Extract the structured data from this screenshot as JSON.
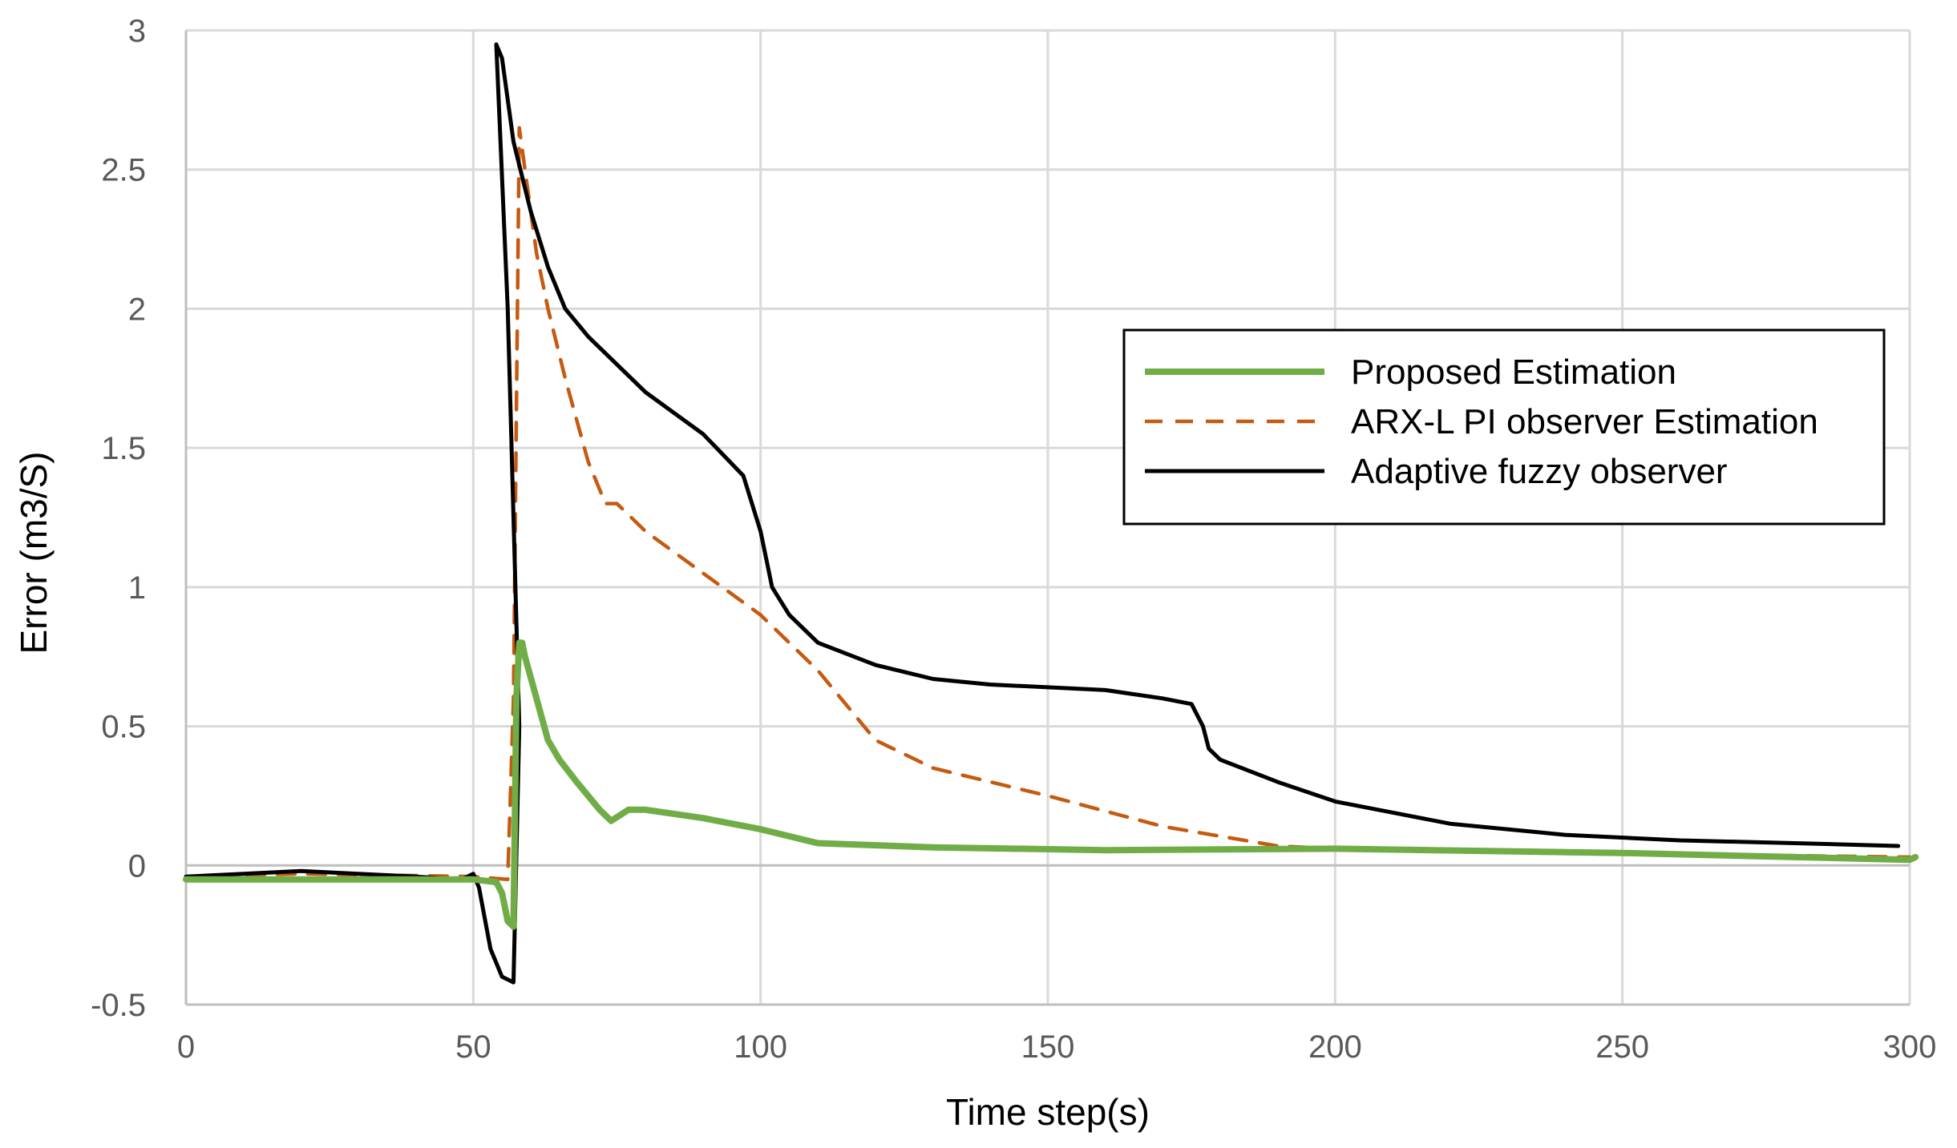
{
  "chart_data": {
    "type": "line",
    "title": "",
    "xlabel": "Time step(s)",
    "ylabel": "Error (m3/S)",
    "xlim": [
      0,
      300
    ],
    "ylim": [
      -0.5,
      3
    ],
    "xticks": [
      "0",
      "50",
      "100",
      "150",
      "200",
      "250",
      "300"
    ],
    "yticks": [
      "-0.5",
      "0",
      "0.5",
      "1",
      "1.5",
      "2",
      "2.5",
      "3"
    ],
    "grid": true,
    "legend_position": "upper-right",
    "series": [
      {
        "name": "Proposed Estimation",
        "color": "#70ad47",
        "style": "solid-thick",
        "x": [
          0,
          50,
          54,
          55,
          56,
          57,
          57.5,
          58,
          58.5,
          59,
          61,
          63,
          65,
          68,
          72,
          74,
          77,
          80,
          90,
          100,
          110,
          130,
          160,
          200,
          250,
          280,
          300,
          301
        ],
        "y": [
          -0.05,
          -0.05,
          -0.06,
          -0.1,
          -0.2,
          -0.22,
          0.6,
          0.8,
          0.8,
          0.75,
          0.6,
          0.45,
          0.38,
          0.3,
          0.2,
          0.16,
          0.2,
          0.2,
          0.17,
          0.13,
          0.08,
          0.065,
          0.055,
          0.06,
          0.045,
          0.03,
          0.02,
          0.03
        ]
      },
      {
        "name": "ARX-L PI observer Estimation",
        "color": "#c55a11",
        "style": "dashed",
        "x": [
          0,
          20,
          50,
          56,
          57,
          58,
          59,
          61,
          63,
          66,
          70,
          73,
          75,
          80,
          90,
          100,
          110,
          120,
          130,
          150,
          170,
          190,
          200,
          220,
          250,
          280,
          300
        ],
        "y": [
          -0.04,
          -0.03,
          -0.04,
          -0.05,
          0.6,
          2.65,
          2.5,
          2.2,
          2.0,
          1.75,
          1.45,
          1.3,
          1.3,
          1.2,
          1.05,
          0.9,
          0.7,
          0.45,
          0.35,
          0.25,
          0.14,
          0.07,
          0.06,
          0.05,
          0.04,
          0.035,
          0.03
        ]
      },
      {
        "name": "Adaptive fuzzy observer",
        "color": "#000000",
        "style": "solid",
        "x": [
          0,
          10,
          20,
          30,
          40,
          48,
          50,
          51,
          53,
          55,
          57,
          58,
          56,
          54,
          55,
          57,
          60,
          63,
          66,
          70,
          75,
          80,
          90,
          97,
          100,
          102,
          105,
          110,
          120,
          130,
          140,
          150,
          160,
          170,
          175,
          177,
          178,
          180,
          190,
          200,
          220,
          240,
          260,
          280,
          298
        ],
        "y": [
          -0.04,
          -0.03,
          -0.02,
          -0.03,
          -0.04,
          -0.05,
          -0.03,
          -0.08,
          -0.3,
          -0.4,
          -0.42,
          0.5,
          2.0,
          2.95,
          2.9,
          2.6,
          2.35,
          2.15,
          2.0,
          1.9,
          1.8,
          1.7,
          1.55,
          1.4,
          1.2,
          1.0,
          0.9,
          0.8,
          0.72,
          0.67,
          0.65,
          0.64,
          0.63,
          0.6,
          0.58,
          0.5,
          0.42,
          0.38,
          0.3,
          0.23,
          0.15,
          0.11,
          0.09,
          0.08,
          0.07
        ]
      }
    ]
  }
}
